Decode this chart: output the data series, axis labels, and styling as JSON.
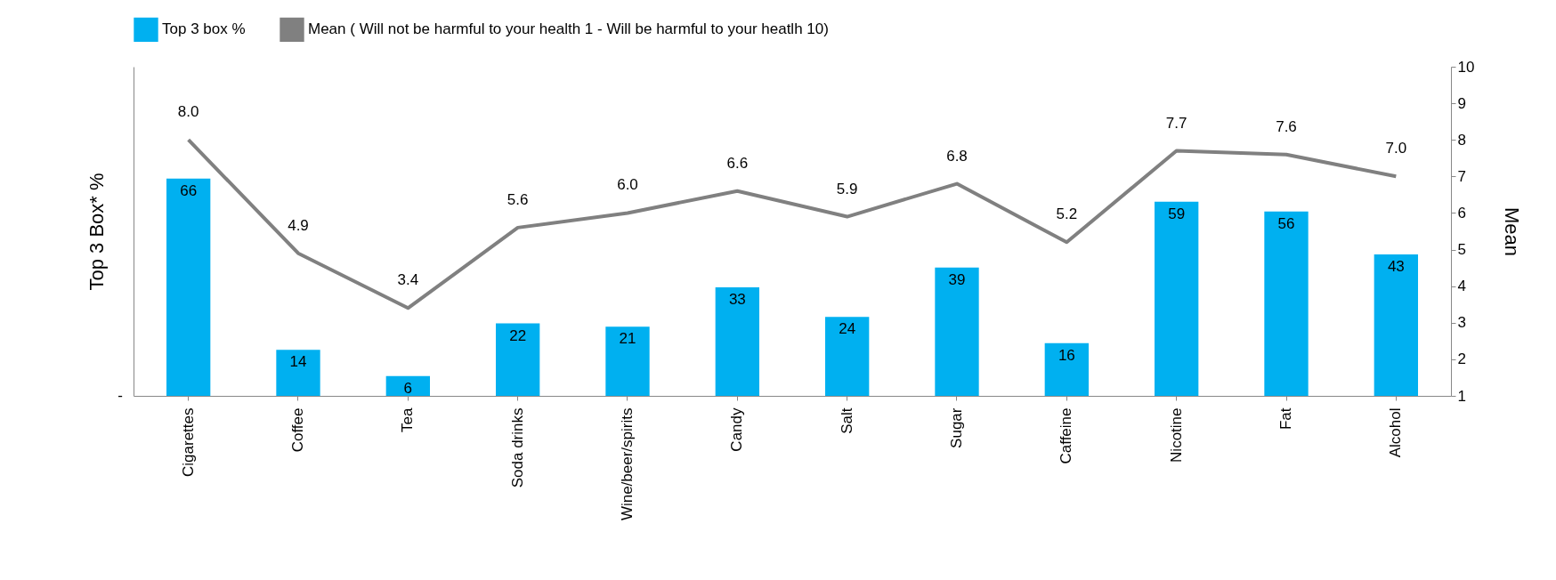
{
  "chart_data": {
    "type": "bar",
    "categories": [
      "Cigarettes",
      "Coffee",
      "Tea",
      "Soda drinks",
      "Wine/beer/spirits",
      "Candy",
      "Salt",
      "Sugar",
      "Caffeine",
      "Nicotine",
      "Fat",
      "Alcohol"
    ],
    "series": [
      {
        "name": "Top 3 box %",
        "color": "#00b0f0",
        "values": [
          66,
          14,
          6,
          22,
          21,
          33,
          24,
          39,
          16,
          59,
          56,
          43
        ]
      },
      {
        "name": "Mean ( Will not be harmful to your health 1 - Will be harmful to your heatlh 10)",
        "type": "line",
        "axis": "y2",
        "color": "#808080",
        "values": [
          8.0,
          4.9,
          3.4,
          5.6,
          6.0,
          6.6,
          5.9,
          6.8,
          5.2,
          7.7,
          7.6,
          7.0
        ],
        "value_labels": [
          "8.0",
          "4.9",
          "3.4",
          "5.6",
          "6.0",
          "6.6",
          "5.9",
          "6.8",
          "5.2",
          "7.7",
          "7.6",
          "7.0"
        ]
      }
    ],
    "ylabel": "Top 3 Box* %",
    "y2label": "Mean",
    "ylim": [
      0,
      100
    ],
    "annotations": [
      "-"
    ],
    "y2lim": [
      1,
      10
    ],
    "y2ticks": [
      1,
      2,
      3,
      4,
      5,
      6,
      7,
      8,
      9,
      10
    ],
    "data_labels": true,
    "legend": "top",
    "grid": false
  }
}
